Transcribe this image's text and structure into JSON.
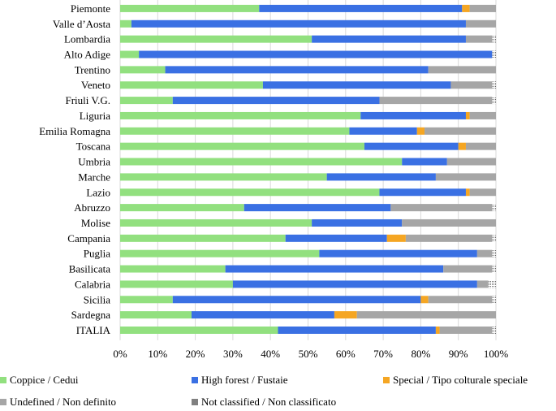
{
  "chart_data": {
    "type": "bar",
    "orientation": "horizontal",
    "stacked": "percent",
    "categories": [
      "Piemonte",
      "Valle d’Aosta",
      "Lombardia",
      "Alto Adige",
      "Trentino",
      "Veneto",
      "Friuli V.G.",
      "Liguria",
      "Emilia Romagna",
      "Toscana",
      "Umbria",
      "Marche",
      "Lazio",
      "Abruzzo",
      "Molise",
      "Campania",
      "Puglia",
      "Basilicata",
      "Calabria",
      "Sicilia",
      "Sardegna",
      "ITALIA"
    ],
    "series": [
      {
        "name": "Coppice / Cedui",
        "color": "#92e07f",
        "values": [
          37,
          3,
          51,
          5,
          12,
          38,
          14,
          64,
          61,
          65,
          75,
          55,
          69,
          33,
          51,
          44,
          53,
          28,
          30,
          14,
          19,
          42
        ]
      },
      {
        "name": "High forest / Fustaie",
        "color": "#3a70e3",
        "values": [
          54,
          89,
          41,
          94,
          70,
          50,
          55,
          28,
          18,
          25,
          12,
          29,
          23,
          39,
          24,
          27,
          42,
          58,
          65,
          66,
          38,
          42
        ]
      },
      {
        "name": "Special / Tipo colturale speciale",
        "color": "#f5a623",
        "values": [
          2,
          0,
          0,
          0,
          0,
          0,
          0,
          1,
          2,
          2,
          0,
          0,
          1,
          0,
          0,
          5,
          0,
          0,
          0,
          2,
          6,
          1
        ]
      },
      {
        "name": "Undefined / Non definito",
        "color": "#a6a6a6",
        "values": [
          7,
          8,
          7,
          0,
          18,
          11,
          30,
          7,
          19,
          8,
          13,
          16,
          7,
          27,
          25,
          23,
          4,
          13,
          3,
          17,
          37,
          14
        ]
      },
      {
        "name": "Not classified / Non classificato",
        "color": "#dcdcdc",
        "values": [
          0,
          0,
          1,
          1,
          0,
          1,
          1,
          0,
          0,
          0,
          0,
          0,
          0,
          1,
          0,
          1,
          1,
          1,
          2,
          1,
          0,
          1
        ]
      }
    ],
    "x_ticks": [
      "0%",
      "10%",
      "20%",
      "30%",
      "40%",
      "50%",
      "60%",
      "70%",
      "80%",
      "90%",
      "100%"
    ],
    "xlim": [
      0,
      100
    ],
    "grid": "vertical",
    "legend_position": "bottom",
    "title": "",
    "xlabel": "",
    "ylabel": ""
  }
}
